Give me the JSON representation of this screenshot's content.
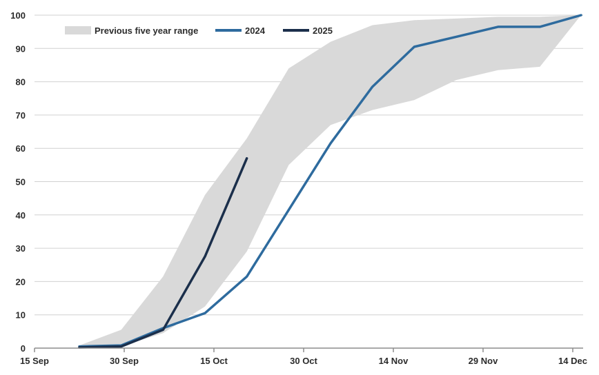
{
  "chart_data": {
    "type": "line",
    "title": "",
    "xlabel": "",
    "ylabel": "",
    "ylim": [
      0,
      100
    ],
    "xlim": [
      0,
      90
    ],
    "x_tick_labels": [
      "15 Sep",
      "30 Sep",
      "15 Oct",
      "30 Oct",
      "14 Nov",
      "29 Nov",
      "14 Dec"
    ],
    "x_tick_days": [
      0,
      15,
      30,
      45,
      60,
      75,
      90
    ],
    "y_ticks": [
      0,
      10,
      20,
      30,
      40,
      50,
      60,
      70,
      80,
      90,
      100
    ],
    "grid": "horizontal",
    "legend_position": "top-left",
    "range": {
      "name": "Previous five year range",
      "color": "#d9d9d9",
      "days": [
        7.5,
        14.5,
        21.5,
        28.5,
        35.5,
        42.5,
        49.5,
        56.5,
        63.5,
        70.5,
        77.5,
        84.5,
        91.5
      ],
      "upper": [
        0.8,
        5.5,
        21.5,
        46,
        63,
        84,
        92,
        97,
        98.5,
        99,
        99.5,
        99.5,
        100
      ],
      "lower": [
        0.2,
        0.5,
        4.5,
        12.5,
        29,
        55,
        67,
        71.5,
        74.5,
        80.5,
        83.5,
        84.5,
        100
      ]
    },
    "series": [
      {
        "name": "2024",
        "color": "#2e6b9e",
        "width": 3.5,
        "days": [
          7.5,
          14.5,
          21.5,
          28.5,
          35.5,
          42.5,
          49.5,
          56.5,
          63.5,
          70.5,
          77.5,
          84.5,
          91.5
        ],
        "values": [
          0.5,
          0.8,
          6.0,
          10.5,
          21.5,
          41.5,
          61.5,
          78.5,
          90.5,
          93.5,
          96.5,
          96.5,
          100
        ]
      },
      {
        "name": "2025",
        "color": "#1b2f4b",
        "width": 3.5,
        "days": [
          7.5,
          14.5,
          21.5,
          28.5,
          35.5
        ],
        "values": [
          0.2,
          0.5,
          5.5,
          27.5,
          57
        ]
      }
    ]
  }
}
